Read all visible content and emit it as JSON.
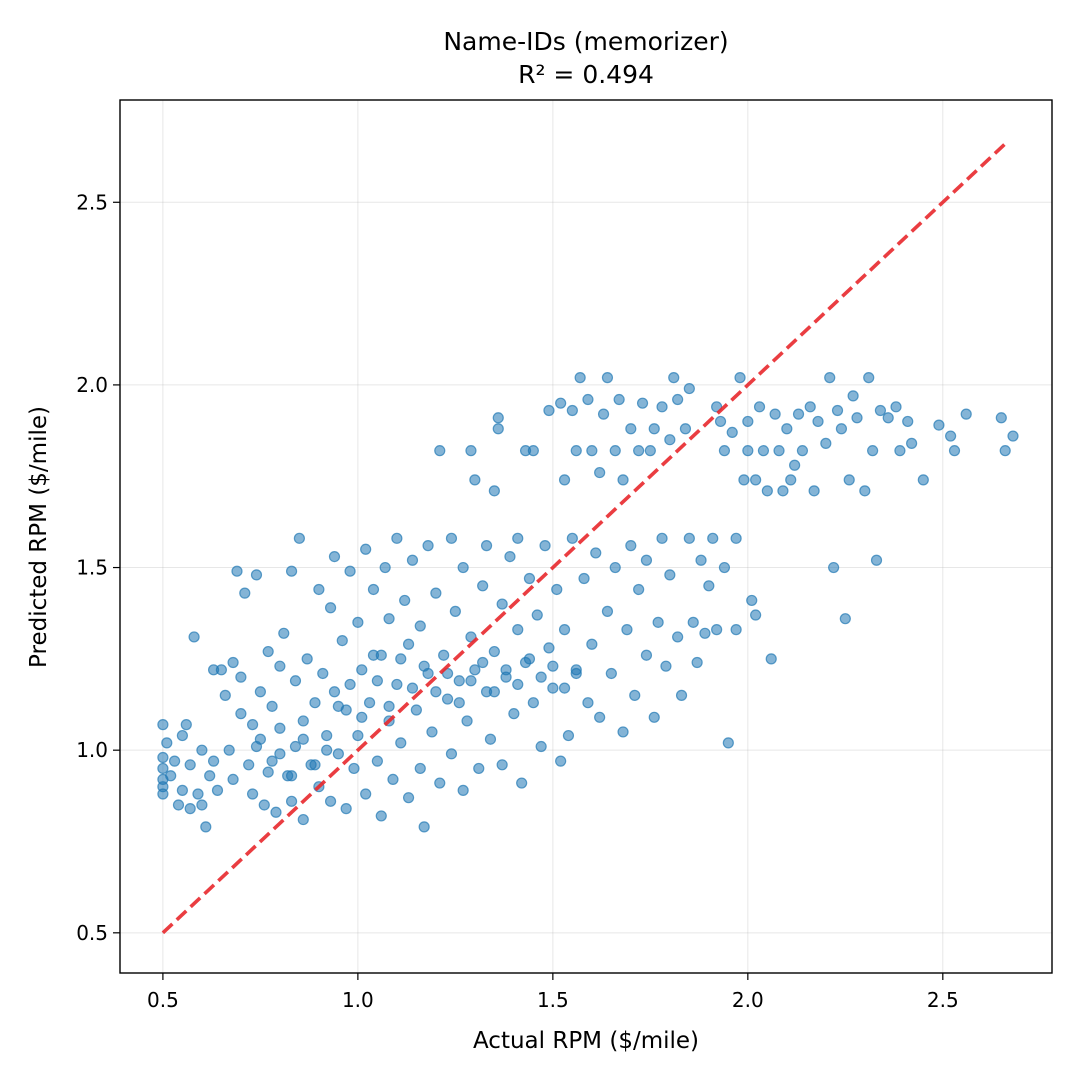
{
  "chart_data": {
    "type": "scatter",
    "title": "Name-IDs (memorizer)",
    "subtitle": "R² = 0.494",
    "xlabel": "Actual RPM ($/mile)",
    "ylabel": "Predicted RPM ($/mile)",
    "xlim": [
      0.39,
      2.78
    ],
    "ylim": [
      0.39,
      2.78
    ],
    "xticks": [
      "0.5",
      "1.0",
      "1.5",
      "2.0",
      "2.5"
    ],
    "yticks": [
      "0.5",
      "1.0",
      "1.5",
      "2.0",
      "2.5"
    ],
    "grid": true,
    "reference_line": {
      "from": [
        0.5,
        0.5
      ],
      "to": [
        2.66,
        2.66
      ],
      "style": "dashed",
      "color": "#e8282c"
    },
    "point_color": "#1f77b4",
    "series": [
      {
        "points": [
          [
            0.5,
            1.07
          ],
          [
            0.5,
            0.98
          ],
          [
            0.5,
            0.95
          ],
          [
            0.5,
            0.92
          ],
          [
            0.5,
            0.9
          ],
          [
            0.5,
            0.88
          ],
          [
            0.51,
            1.02
          ],
          [
            0.52,
            0.93
          ],
          [
            0.53,
            0.97
          ],
          [
            0.54,
            0.85
          ],
          [
            0.55,
            1.04
          ],
          [
            0.55,
            0.89
          ],
          [
            0.56,
            1.07
          ],
          [
            0.57,
            0.84
          ],
          [
            0.57,
            0.96
          ],
          [
            0.58,
            1.31
          ],
          [
            0.59,
            0.88
          ],
          [
            0.6,
            1.0
          ],
          [
            0.6,
            0.85
          ],
          [
            0.61,
            0.79
          ],
          [
            0.62,
            0.93
          ],
          [
            0.63,
            1.22
          ],
          [
            0.63,
            0.97
          ],
          [
            0.64,
            0.89
          ],
          [
            0.65,
            1.22
          ],
          [
            0.66,
            1.15
          ],
          [
            0.67,
            1.0
          ],
          [
            0.68,
            1.24
          ],
          [
            0.68,
            0.92
          ],
          [
            0.69,
            1.49
          ],
          [
            0.7,
            1.2
          ],
          [
            0.7,
            1.1
          ],
          [
            0.71,
            1.43
          ],
          [
            0.72,
            0.96
          ],
          [
            0.73,
            1.07
          ],
          [
            0.73,
            0.88
          ],
          [
            0.74,
            1.48
          ],
          [
            0.75,
            1.16
          ],
          [
            0.75,
            1.03
          ],
          [
            0.76,
            0.85
          ],
          [
            0.77,
            1.27
          ],
          [
            0.78,
            1.12
          ],
          [
            0.78,
            0.97
          ],
          [
            0.79,
            0.83
          ],
          [
            0.8,
            1.23
          ],
          [
            0.8,
            1.06
          ],
          [
            0.81,
            1.32
          ],
          [
            0.82,
            0.93
          ],
          [
            0.83,
            1.49
          ],
          [
            0.83,
            0.86
          ],
          [
            0.84,
            1.19
          ],
          [
            0.84,
            1.01
          ],
          [
            0.85,
            1.58
          ],
          [
            0.86,
            1.08
          ],
          [
            0.86,
            0.81
          ],
          [
            0.87,
            1.25
          ],
          [
            0.88,
            0.96
          ],
          [
            0.89,
            1.13
          ],
          [
            0.9,
            1.44
          ],
          [
            0.9,
            0.9
          ],
          [
            0.91,
            1.21
          ],
          [
            0.92,
            1.04
          ],
          [
            0.93,
            1.39
          ],
          [
            0.93,
            0.86
          ],
          [
            0.94,
            1.53
          ],
          [
            0.94,
            1.16
          ],
          [
            0.95,
            0.99
          ],
          [
            0.96,
            1.3
          ],
          [
            0.97,
            1.11
          ],
          [
            0.97,
            0.84
          ],
          [
            0.98,
            1.49
          ],
          [
            0.99,
            0.95
          ],
          [
            1.0,
            1.35
          ],
          [
            1.0,
            1.04
          ],
          [
            1.01,
            1.22
          ],
          [
            1.02,
            0.88
          ],
          [
            1.02,
            1.55
          ],
          [
            1.03,
            1.13
          ],
          [
            1.04,
            1.44
          ],
          [
            1.05,
            0.97
          ],
          [
            1.06,
            1.26
          ],
          [
            1.06,
            0.82
          ],
          [
            1.07,
            1.5
          ],
          [
            1.08,
            1.08
          ],
          [
            1.08,
            1.36
          ],
          [
            1.09,
            0.92
          ],
          [
            1.1,
            1.58
          ],
          [
            1.1,
            1.18
          ],
          [
            1.11,
            1.02
          ],
          [
            1.12,
            1.41
          ],
          [
            1.13,
            0.87
          ],
          [
            1.13,
            1.29
          ],
          [
            1.14,
            1.52
          ],
          [
            1.15,
            1.11
          ],
          [
            1.16,
            0.95
          ],
          [
            1.16,
            1.34
          ],
          [
            1.17,
            0.79
          ],
          [
            1.18,
            1.21
          ],
          [
            1.18,
            1.56
          ],
          [
            1.19,
            1.05
          ],
          [
            1.2,
            1.43
          ],
          [
            1.21,
            0.91
          ],
          [
            1.21,
            1.82
          ],
          [
            1.22,
            1.26
          ],
          [
            1.23,
            1.14
          ],
          [
            1.24,
            1.58
          ],
          [
            1.24,
            0.99
          ],
          [
            1.25,
            1.38
          ],
          [
            1.26,
            1.19
          ],
          [
            1.27,
            1.5
          ],
          [
            1.27,
            0.89
          ],
          [
            1.28,
            1.08
          ],
          [
            1.29,
            1.82
          ],
          [
            1.29,
            1.31
          ],
          [
            1.3,
            1.74
          ],
          [
            1.3,
            1.22
          ],
          [
            1.31,
            0.95
          ],
          [
            1.32,
            1.45
          ],
          [
            1.33,
            1.16
          ],
          [
            1.33,
            1.56
          ],
          [
            1.34,
            1.03
          ],
          [
            1.35,
            1.71
          ],
          [
            1.35,
            1.27
          ],
          [
            1.36,
            1.91
          ],
          [
            1.36,
            1.88
          ],
          [
            1.37,
            1.4
          ],
          [
            1.37,
            0.96
          ],
          [
            1.38,
            1.2
          ],
          [
            1.39,
            1.53
          ],
          [
            1.4,
            1.1
          ],
          [
            1.41,
            1.33
          ],
          [
            1.41,
            1.58
          ],
          [
            1.42,
            0.91
          ],
          [
            1.43,
            1.82
          ],
          [
            1.43,
            1.24
          ],
          [
            1.44,
            1.47
          ],
          [
            1.45,
            1.13
          ],
          [
            1.45,
            1.82
          ],
          [
            1.46,
            1.37
          ],
          [
            1.47,
            1.01
          ],
          [
            1.48,
            1.56
          ],
          [
            1.49,
            1.28
          ],
          [
            1.49,
            1.93
          ],
          [
            1.5,
            1.17
          ],
          [
            1.51,
            1.44
          ],
          [
            1.52,
            0.97
          ],
          [
            1.52,
            1.95
          ],
          [
            1.53,
            1.74
          ],
          [
            1.53,
            1.33
          ],
          [
            1.54,
            1.04
          ],
          [
            1.55,
            1.58
          ],
          [
            1.55,
            1.93
          ],
          [
            1.56,
            1.22
          ],
          [
            1.56,
            1.82
          ],
          [
            1.57,
            2.02
          ],
          [
            1.58,
            1.47
          ],
          [
            1.59,
            1.13
          ],
          [
            1.59,
            1.96
          ],
          [
            1.6,
            1.29
          ],
          [
            1.6,
            1.82
          ],
          [
            1.61,
            1.54
          ],
          [
            1.62,
            1.76
          ],
          [
            1.62,
            1.09
          ],
          [
            1.63,
            1.92
          ],
          [
            1.64,
            1.38
          ],
          [
            1.64,
            2.02
          ],
          [
            1.65,
            1.21
          ],
          [
            1.66,
            1.82
          ],
          [
            1.66,
            1.5
          ],
          [
            1.67,
            1.96
          ],
          [
            1.68,
            1.05
          ],
          [
            1.68,
            1.74
          ],
          [
            1.69,
            1.33
          ],
          [
            1.7,
            1.88
          ],
          [
            1.7,
            1.56
          ],
          [
            1.71,
            1.15
          ],
          [
            1.72,
            1.82
          ],
          [
            1.72,
            1.44
          ],
          [
            1.73,
            1.95
          ],
          [
            1.74,
            1.26
          ],
          [
            1.74,
            1.52
          ],
          [
            1.75,
            1.82
          ],
          [
            1.76,
            1.09
          ],
          [
            1.76,
            1.88
          ],
          [
            1.77,
            1.35
          ],
          [
            1.78,
            1.94
          ],
          [
            1.78,
            1.58
          ],
          [
            1.79,
            1.23
          ],
          [
            1.8,
            1.85
          ],
          [
            1.8,
            1.48
          ],
          [
            1.81,
            2.02
          ],
          [
            1.82,
            1.31
          ],
          [
            1.82,
            1.96
          ],
          [
            1.83,
            1.15
          ],
          [
            1.84,
            1.88
          ],
          [
            1.85,
            1.58
          ],
          [
            1.85,
            1.99
          ],
          [
            1.86,
            1.35
          ],
          [
            1.87,
            1.24
          ],
          [
            1.88,
            1.52
          ],
          [
            1.89,
            1.32
          ],
          [
            1.9,
            1.45
          ],
          [
            1.91,
            1.58
          ],
          [
            1.92,
            1.94
          ],
          [
            1.92,
            1.33
          ],
          [
            1.93,
            1.9
          ],
          [
            1.94,
            1.82
          ],
          [
            1.94,
            1.5
          ],
          [
            1.95,
            1.02
          ],
          [
            1.96,
            1.87
          ],
          [
            1.97,
            1.58
          ],
          [
            1.97,
            1.33
          ],
          [
            1.98,
            2.02
          ],
          [
            1.99,
            1.74
          ],
          [
            2.0,
            1.9
          ],
          [
            2.0,
            1.82
          ],
          [
            2.01,
            1.41
          ],
          [
            2.02,
            1.74
          ],
          [
            2.02,
            1.37
          ],
          [
            2.03,
            1.94
          ],
          [
            2.04,
            1.82
          ],
          [
            2.05,
            1.71
          ],
          [
            2.06,
            1.25
          ],
          [
            2.07,
            1.92
          ],
          [
            2.08,
            1.82
          ],
          [
            2.09,
            1.71
          ],
          [
            2.1,
            1.88
          ],
          [
            2.11,
            1.74
          ],
          [
            2.12,
            1.78
          ],
          [
            2.13,
            1.92
          ],
          [
            2.14,
            1.82
          ],
          [
            2.16,
            1.94
          ],
          [
            2.17,
            1.71
          ],
          [
            2.18,
            1.9
          ],
          [
            2.2,
            1.84
          ],
          [
            2.21,
            2.02
          ],
          [
            2.22,
            1.5
          ],
          [
            2.23,
            1.93
          ],
          [
            2.24,
            1.88
          ],
          [
            2.25,
            1.36
          ],
          [
            2.26,
            1.74
          ],
          [
            2.27,
            1.97
          ],
          [
            2.28,
            1.91
          ],
          [
            2.3,
            1.71
          ],
          [
            2.31,
            2.02
          ],
          [
            2.32,
            1.82
          ],
          [
            2.33,
            1.52
          ],
          [
            2.34,
            1.93
          ],
          [
            2.36,
            1.91
          ],
          [
            2.38,
            1.94
          ],
          [
            2.39,
            1.82
          ],
          [
            2.41,
            1.9
          ],
          [
            2.42,
            1.84
          ],
          [
            2.45,
            1.74
          ],
          [
            2.49,
            1.89
          ],
          [
            2.52,
            1.86
          ],
          [
            2.53,
            1.82
          ],
          [
            2.56,
            1.92
          ],
          [
            2.65,
            1.91
          ],
          [
            2.66,
            1.82
          ],
          [
            2.68,
            1.86
          ],
          [
            1.05,
            1.19
          ],
          [
            1.08,
            1.12
          ],
          [
            1.11,
            1.25
          ],
          [
            1.14,
            1.17
          ],
          [
            1.17,
            1.23
          ],
          [
            1.2,
            1.16
          ],
          [
            1.23,
            1.21
          ],
          [
            1.26,
            1.13
          ],
          [
            1.29,
            1.19
          ],
          [
            1.32,
            1.24
          ],
          [
            1.35,
            1.16
          ],
          [
            1.38,
            1.22
          ],
          [
            1.41,
            1.18
          ],
          [
            1.44,
            1.25
          ],
          [
            1.47,
            1.2
          ],
          [
            1.5,
            1.23
          ],
          [
            1.53,
            1.17
          ],
          [
            1.56,
            1.21
          ],
          [
            0.95,
            1.12
          ],
          [
            0.98,
            1.18
          ],
          [
            1.01,
            1.09
          ],
          [
            1.04,
            1.26
          ],
          [
            0.92,
            1.0
          ],
          [
            0.89,
            0.96
          ],
          [
            0.86,
            1.03
          ],
          [
            0.83,
            0.93
          ],
          [
            0.8,
            0.99
          ],
          [
            0.77,
            0.94
          ],
          [
            0.74,
            1.01
          ]
        ]
      }
    ]
  }
}
